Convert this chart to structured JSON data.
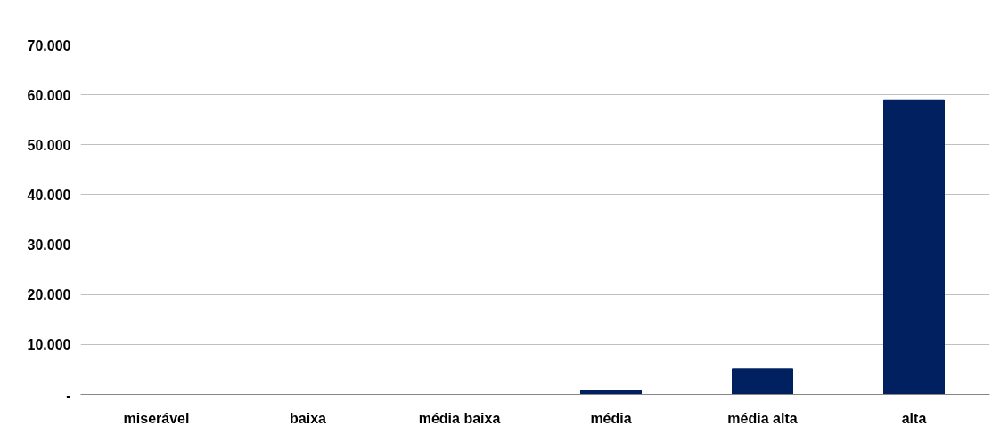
{
  "chart_data": {
    "type": "bar",
    "categories": [
      "miserável",
      "baixa",
      "média baixa",
      "média",
      "média alta",
      "alta"
    ],
    "values": [
      0,
      0,
      0,
      800,
      5100,
      59000
    ],
    "color": "#002060",
    "ylim": [
      0,
      70000
    ],
    "yticks": [
      {
        "value": 0,
        "label": "-"
      },
      {
        "value": 10000,
        "label": "10.000"
      },
      {
        "value": 20000,
        "label": "20.000"
      },
      {
        "value": 30000,
        "label": "30.000"
      },
      {
        "value": 40000,
        "label": "40.000"
      },
      {
        "value": 50000,
        "label": "50.000"
      },
      {
        "value": 60000,
        "label": "60.000"
      },
      {
        "value": 70000,
        "label": "70.000"
      }
    ],
    "grid": "y"
  }
}
